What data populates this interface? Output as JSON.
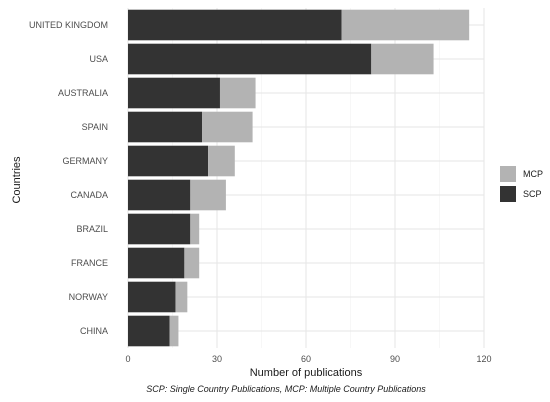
{
  "chart_data": {
    "type": "bar",
    "orientation": "horizontal",
    "stacked": true,
    "categories": [
      "UNITED KINGDOM",
      "USA",
      "AUSTRALIA",
      "SPAIN",
      "GERMANY",
      "CANADA",
      "BRAZIL",
      "FRANCE",
      "NORWAY",
      "CHINA"
    ],
    "series": [
      {
        "name": "SCP",
        "values": [
          72,
          82,
          31,
          25,
          27,
          21,
          21,
          19,
          16,
          14
        ],
        "color": "#333333"
      },
      {
        "name": "MCP",
        "values": [
          43,
          21,
          12,
          17,
          9,
          12,
          3,
          5,
          4,
          3
        ],
        "color": "#b3b3b3"
      }
    ],
    "xlabel": "Number of publications",
    "ylabel": "Countries",
    "xlim": [
      0,
      120
    ],
    "xticks": [
      0,
      30,
      60,
      90,
      120
    ],
    "grid": true,
    "legend": {
      "position": "right",
      "order": [
        "MCP",
        "SCP"
      ]
    },
    "caption": "SCP: Single Country Publications, MCP: Multiple Country Publications"
  }
}
